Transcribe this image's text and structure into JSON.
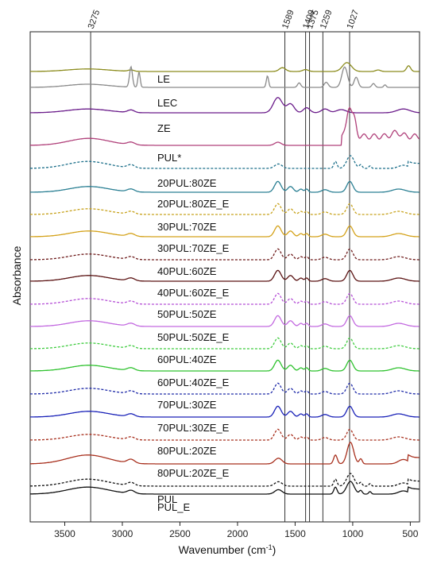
{
  "chart_data": {
    "type": "line",
    "title": "",
    "xlabel": "Wavenumber (cm",
    "xlabel_sup": "-1",
    "xlabel_end": ")",
    "ylabel": "Absorbance",
    "xlim": [
      3800,
      420
    ],
    "x_reversed": true,
    "xticks": [
      3500,
      3000,
      2500,
      2000,
      1500,
      1000,
      500
    ],
    "xtick_labels": [
      "3500",
      "3000",
      "2500",
      "2000",
      "1500",
      "1000",
      "500"
    ],
    "reference_lines": [
      {
        "x": 3275,
        "label": "3275"
      },
      {
        "x": 1589,
        "label": "1589"
      },
      {
        "x": 1409,
        "label": "1409"
      },
      {
        "x": 1375,
        "label": "1375"
      },
      {
        "x": 1259,
        "label": "1259"
      },
      {
        "x": 1027,
        "label": "1027"
      }
    ],
    "series": [
      {
        "name": "",
        "label": "",
        "color": "#8c8c1e",
        "dash": "solid",
        "profile": "le_top",
        "offset": 2.2
      },
      {
        "name": "LE",
        "label": "LE",
        "color": "#8a8a8a",
        "dash": "solid",
        "profile": "le",
        "offset": 1.1
      },
      {
        "name": "LEC",
        "label": "LEC",
        "color": "#6a1b8a",
        "dash": "solid",
        "profile": "lec",
        "offset": 1.3
      },
      {
        "name": "ZE",
        "label": "ZE",
        "color": "#b0407a",
        "dash": "solid",
        "profile": "ze",
        "offset": 1.2
      },
      {
        "name": "PUL*",
        "label": "PUL*",
        "color": "#1c6f8a",
        "dash": "dashed",
        "profile": "pul",
        "offset": 1.0
      },
      {
        "name": "20PUL:80ZE",
        "label": "20PUL:80ZE",
        "color": "#2a7f93",
        "dash": "solid",
        "profile": "blend",
        "offset": 1.0
      },
      {
        "name": "20PUL:80ZE_E",
        "label": "20PUL:80ZE_E",
        "color": "#c7a21c",
        "dash": "dashed",
        "profile": "blend",
        "offset": 1.0
      },
      {
        "name": "30PUL:70ZE",
        "label": "30PUL:70ZE",
        "color": "#d4a21a",
        "dash": "solid",
        "profile": "blend",
        "offset": 1.0
      },
      {
        "name": "30PUL:70ZE_E",
        "label": "30PUL:70ZE_E",
        "color": "#6e1b1b",
        "dash": "dashed",
        "profile": "blend",
        "offset": 1.0
      },
      {
        "name": "40PUL:60ZE",
        "label": "40PUL:60ZE",
        "color": "#5a1212",
        "dash": "solid",
        "profile": "blend",
        "offset": 1.0
      },
      {
        "name": "40PUL:60ZE_E",
        "label": "40PUL:60ZE_E",
        "color": "#b54fd6",
        "dash": "dashed",
        "profile": "blend",
        "offset": 1.0
      },
      {
        "name": "50PUL:50ZE",
        "label": "50PUL:50ZE",
        "color": "#c36ae0",
        "dash": "solid",
        "profile": "blend",
        "offset": 1.0
      },
      {
        "name": "50PUL:50ZE_E",
        "label": "50PUL:50ZE_E",
        "color": "#3fcc3f",
        "dash": "dashed",
        "profile": "blend",
        "offset": 1.0
      },
      {
        "name": "60PUL:40ZE",
        "label": "60PUL:40ZE",
        "color": "#2ec22e",
        "dash": "solid",
        "profile": "blend",
        "offset": 1.0
      },
      {
        "name": "60PUL:40ZE_E",
        "label": "60PUL:40ZE_E",
        "color": "#1e2aa8",
        "dash": "dashed",
        "profile": "blend",
        "offset": 1.0
      },
      {
        "name": "70PUL:30ZE",
        "label": "70PUL:30ZE",
        "color": "#1a22b8",
        "dash": "solid",
        "profile": "blend",
        "offset": 1.0
      },
      {
        "name": "70PUL:30ZE_E",
        "label": "70PUL:30ZE_E",
        "color": "#a8301e",
        "dash": "dashed",
        "profile": "blend",
        "offset": 1.0
      },
      {
        "name": "80PUL:20ZE",
        "label": "80PUL:20ZE",
        "color": "#a8301e",
        "dash": "solid",
        "profile": "pul_strong",
        "offset": 1.0
      },
      {
        "name": "80PUL:20ZE_E",
        "label": "80PUL:20ZE_E",
        "color": "#111111",
        "dash": "dashed",
        "profile": "pul",
        "offset": 1.0
      },
      {
        "name": "PUL",
        "label": "PUL",
        "color": "#111111",
        "dash": "solid",
        "profile": "pul",
        "offset": 1.0
      },
      {
        "name": "PUL_E",
        "label": "PUL_E",
        "color": "#111111",
        "dash": "none",
        "profile": "none",
        "offset": 0
      }
    ],
    "grid": false,
    "legend": "labels-inline"
  }
}
